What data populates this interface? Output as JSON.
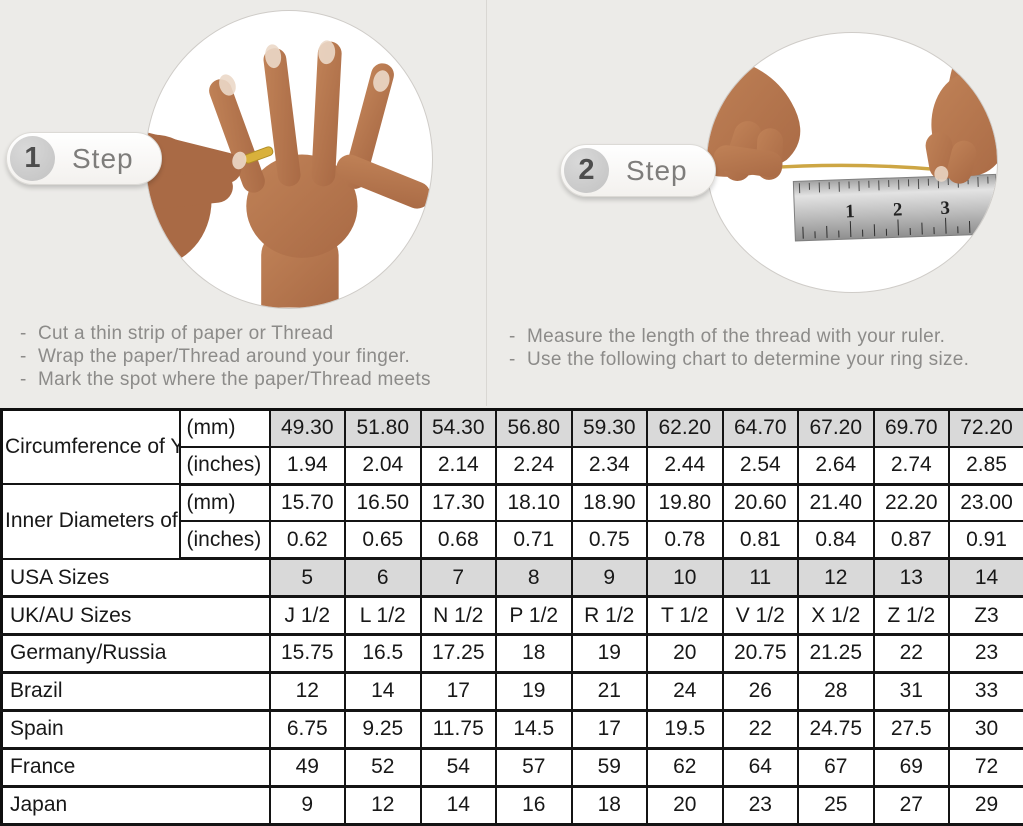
{
  "bullets": {
    "dash": "-"
  },
  "colors": {
    "page_background": "#ecebe8",
    "table_shade": "#d9d9d9",
    "table_border": "#141414",
    "instruction_text": "#8c8b89",
    "thread_gold": "#cda644",
    "skin_tone": "#b5764f"
  },
  "steps": [
    {
      "number": "1",
      "label": "Step",
      "image": "hand-with-ring-photo",
      "instructions": [
        "Cut a thin strip of paper or Thread",
        "Wrap the paper/Thread around your finger.",
        "Mark the spot where the paper/Thread meets"
      ]
    },
    {
      "number": "2",
      "label": "Step",
      "image": "measuring-thread-with-ruler-photo",
      "ruler_numbers": [
        "1",
        "2",
        "3"
      ],
      "instructions": [
        "Measure the length of the thread with your ruler.",
        "Use the following chart to determine your ring size."
      ]
    }
  ],
  "table": {
    "row_groups": [
      {
        "label": "Circumference of Your Finger",
        "rows": [
          {
            "unit": "(mm)",
            "shaded": true,
            "values": [
              "49.30",
              "51.80",
              "54.30",
              "56.80",
              "59.30",
              "62.20",
              "64.70",
              "67.20",
              "69.70",
              "72.20"
            ]
          },
          {
            "unit": "(inches)",
            "shaded": false,
            "values": [
              "1.94",
              "2.04",
              "2.14",
              "2.24",
              "2.34",
              "2.44",
              "2.54",
              "2.64",
              "2.74",
              "2.85"
            ]
          }
        ]
      },
      {
        "label": "Inner Diameters of Rings",
        "rows": [
          {
            "unit": "(mm)",
            "shaded": false,
            "values": [
              "15.70",
              "16.50",
              "17.30",
              "18.10",
              "18.90",
              "19.80",
              "20.60",
              "21.40",
              "22.20",
              "23.00"
            ]
          },
          {
            "unit": "(inches)",
            "shaded": false,
            "values": [
              "0.62",
              "0.65",
              "0.68",
              "0.71",
              "0.75",
              "0.78",
              "0.81",
              "0.84",
              "0.87",
              "0.91"
            ]
          }
        ]
      }
    ],
    "size_rows": [
      {
        "label": "USA Sizes",
        "shaded": true,
        "values": [
          "5",
          "6",
          "7",
          "8",
          "9",
          "10",
          "11",
          "12",
          "13",
          "14"
        ]
      },
      {
        "label": "UK/AU Sizes",
        "shaded": false,
        "values": [
          "J 1/2",
          "L 1/2",
          "N 1/2",
          "P 1/2",
          "R 1/2",
          "T 1/2",
          "V 1/2",
          "X 1/2",
          "Z 1/2",
          "Z3"
        ]
      },
      {
        "label": "Germany/Russia",
        "shaded": false,
        "values": [
          "15.75",
          "16.5",
          "17.25",
          "18",
          "19",
          "20",
          "20.75",
          "21.25",
          "22",
          "23"
        ]
      },
      {
        "label": "Brazil",
        "shaded": false,
        "values": [
          "12",
          "14",
          "17",
          "19",
          "21",
          "24",
          "26",
          "28",
          "31",
          "33"
        ]
      },
      {
        "label": "Spain",
        "shaded": false,
        "values": [
          "6.75",
          "9.25",
          "11.75",
          "14.5",
          "17",
          "19.5",
          "22",
          "24.75",
          "27.5",
          "30"
        ]
      },
      {
        "label": "France",
        "shaded": false,
        "values": [
          "49",
          "52",
          "54",
          "57",
          "59",
          "62",
          "64",
          "67",
          "69",
          "72"
        ]
      },
      {
        "label": "Japan",
        "shaded": false,
        "values": [
          "9",
          "12",
          "14",
          "16",
          "18",
          "20",
          "23",
          "25",
          "27",
          "29"
        ]
      }
    ]
  }
}
